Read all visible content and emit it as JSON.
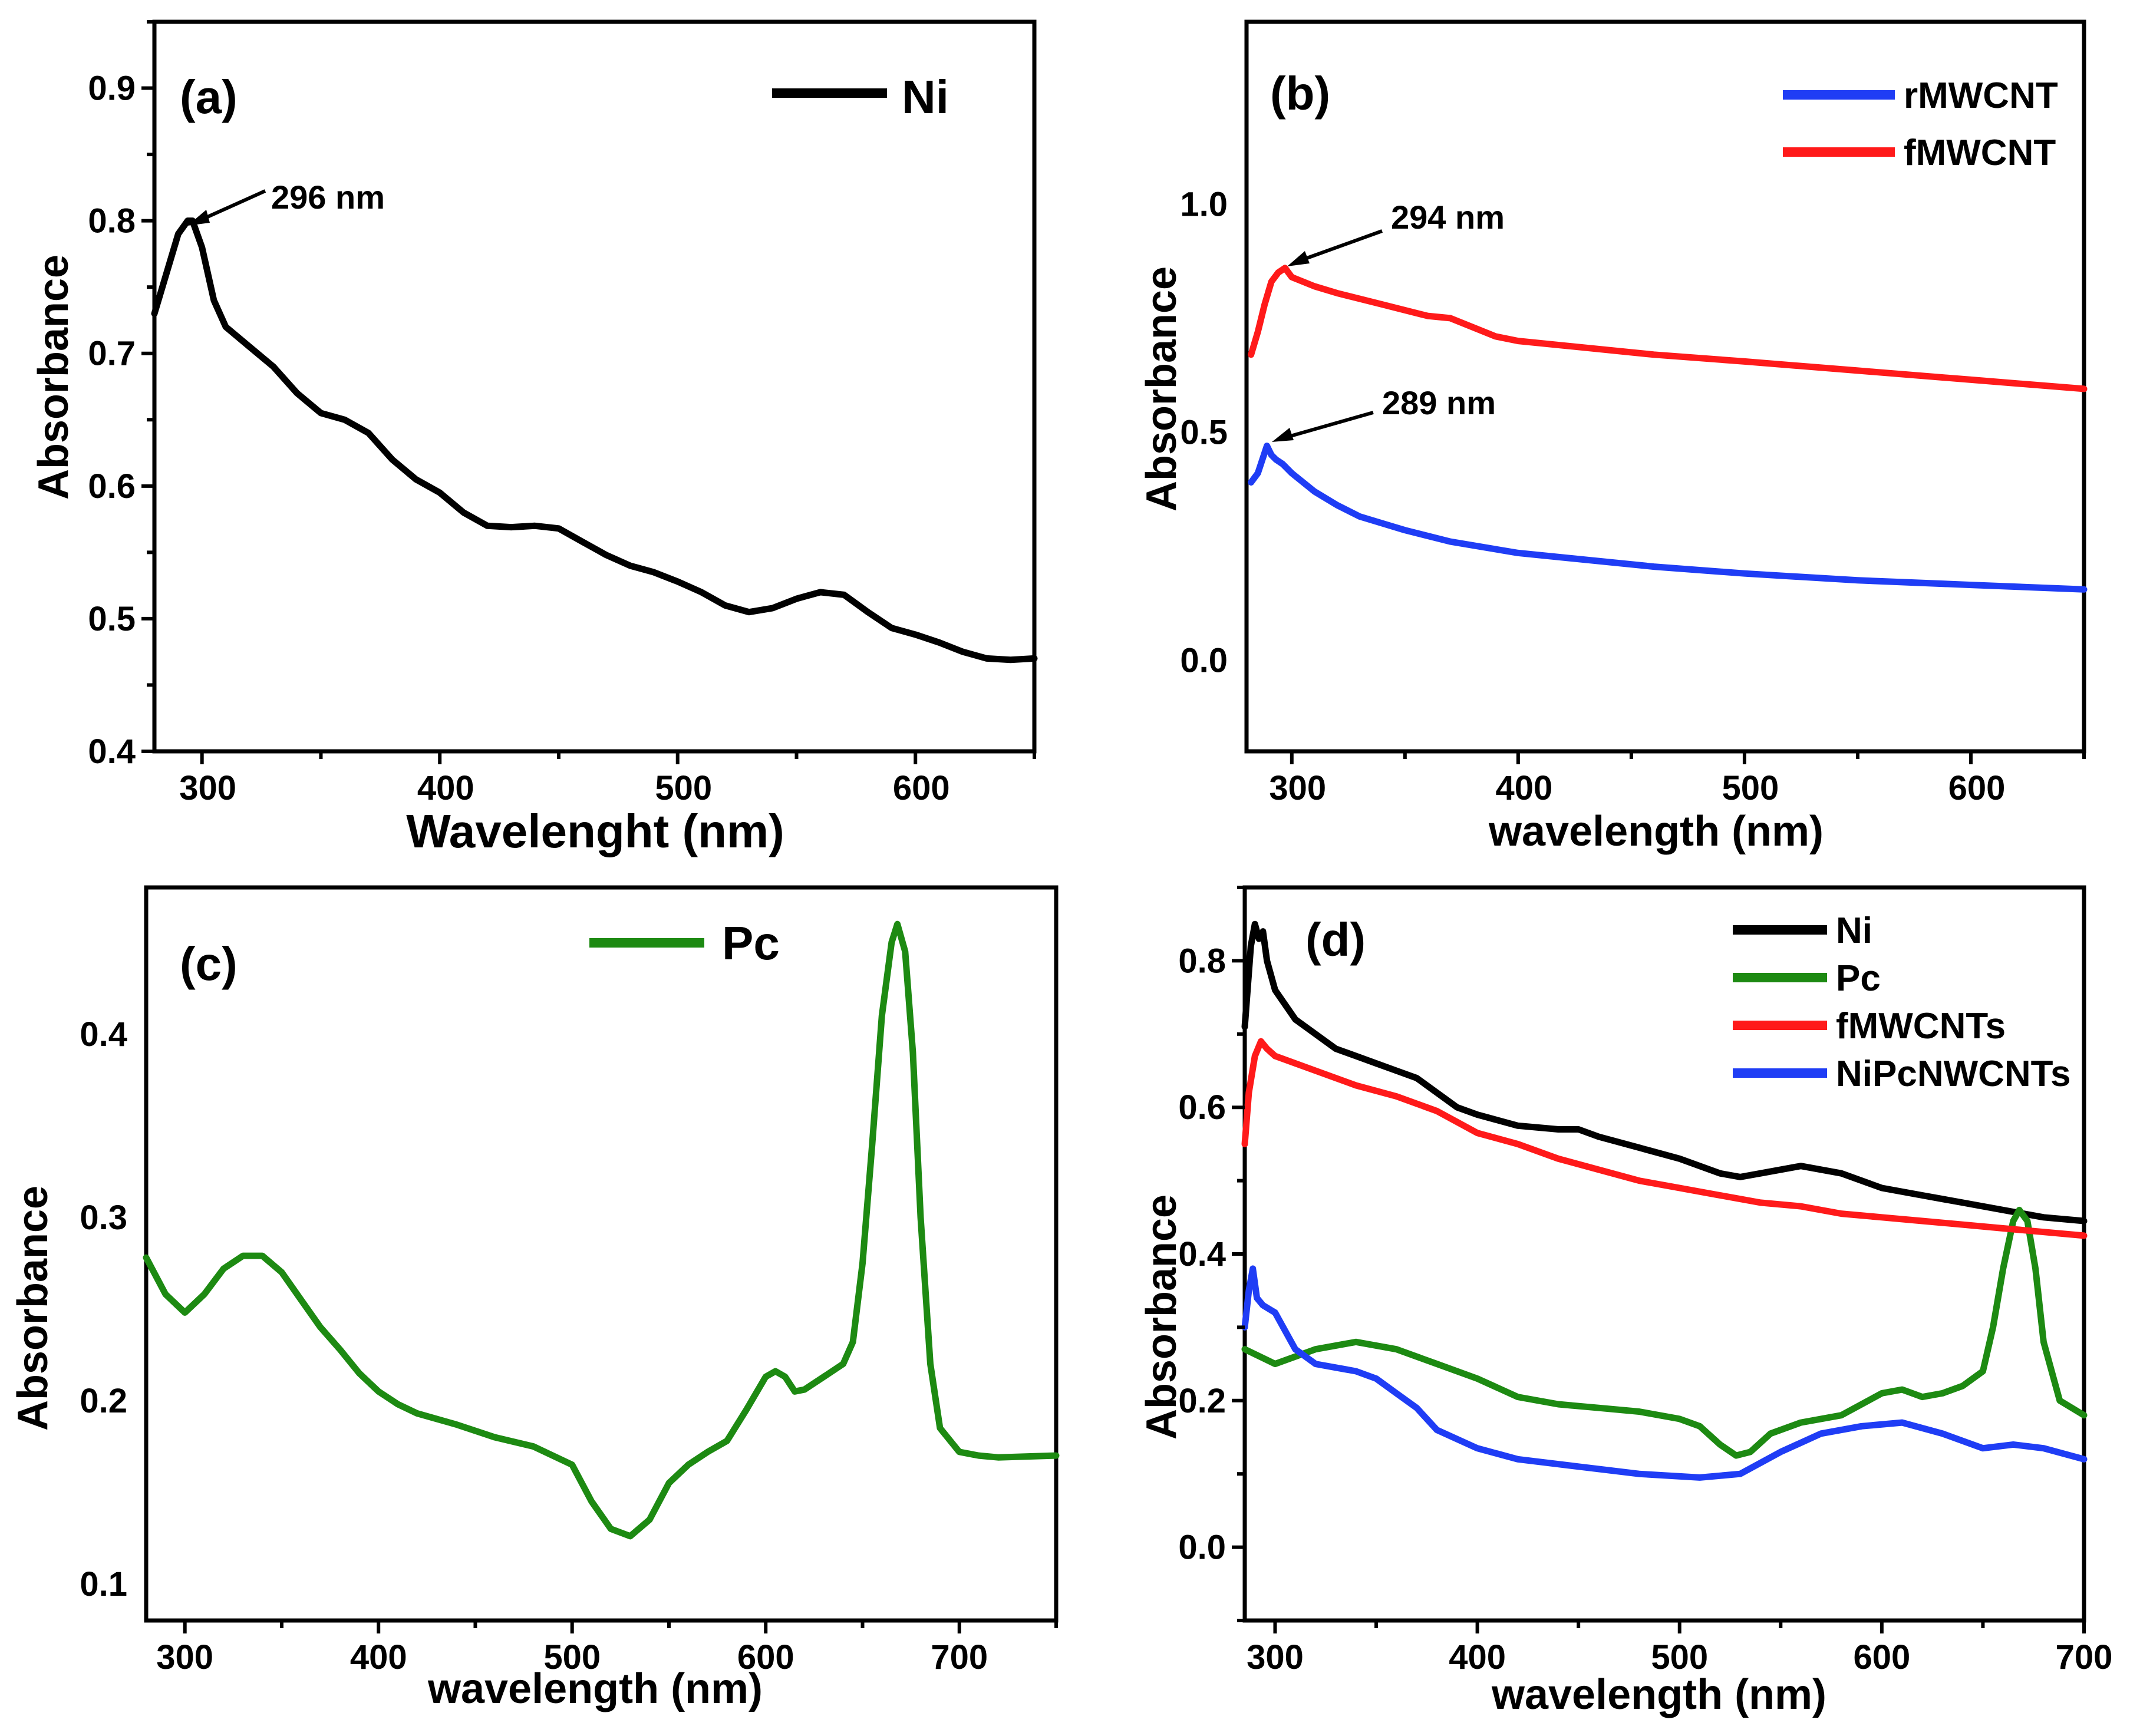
{
  "chart_data": [
    {
      "panel": "(a)",
      "type": "line",
      "xlabel": "Wavelenght (nm)",
      "ylabel": "Absorbance",
      "xlim": [
        280,
        650
      ],
      "ylim": [
        0.4,
        0.95
      ],
      "xticks": [
        300,
        400,
        500,
        600
      ],
      "yticks": [
        0.4,
        0.5,
        0.6,
        0.7,
        0.8,
        0.9
      ],
      "ytick_labels": [
        "0.4",
        "0.5",
        "0.6",
        "0.7",
        "0.8",
        "0.9"
      ],
      "legend_position": "top-right",
      "series": [
        {
          "name": "Ni",
          "color": "#000000",
          "x": [
            280,
            285,
            290,
            294,
            296,
            300,
            305,
            310,
            320,
            330,
            340,
            350,
            360,
            370,
            380,
            390,
            400,
            410,
            420,
            430,
            440,
            450,
            460,
            470,
            480,
            490,
            500,
            510,
            520,
            530,
            540,
            550,
            560,
            570,
            580,
            590,
            600,
            610,
            620,
            630,
            640,
            650
          ],
          "values": [
            0.73,
            0.76,
            0.79,
            0.8,
            0.8,
            0.78,
            0.74,
            0.72,
            0.705,
            0.69,
            0.67,
            0.655,
            0.65,
            0.64,
            0.62,
            0.605,
            0.595,
            0.58,
            0.57,
            0.569,
            0.57,
            0.568,
            0.558,
            0.548,
            0.54,
            0.535,
            0.528,
            0.52,
            0.51,
            0.505,
            0.508,
            0.515,
            0.52,
            0.518,
            0.505,
            0.493,
            0.488,
            0.482,
            0.475,
            0.47,
            0.469,
            0.47
          ]
        }
      ],
      "annotations": [
        {
          "text": "296 nm",
          "x": 296,
          "y": 0.8
        }
      ]
    },
    {
      "panel": "(b)",
      "type": "line",
      "xlabel": "wavelength (nm)",
      "ylabel": "Absorbance",
      "xlim": [
        280,
        650
      ],
      "ylim": [
        -0.2,
        1.4
      ],
      "xticks": [
        300,
        400,
        500,
        600
      ],
      "yticks": [
        0.0,
        0.5,
        1.0
      ],
      "ytick_labels": [
        "0.0",
        "0.5",
        "1.0"
      ],
      "legend_position": "top-right",
      "series": [
        {
          "name": "rMWCNT",
          "color": "#1f3df5",
          "x": [
            282,
            285,
            287,
            289,
            291,
            293,
            296,
            300,
            310,
            320,
            330,
            340,
            350,
            370,
            400,
            430,
            460,
            500,
            550,
            600,
            650
          ],
          "values": [
            0.39,
            0.41,
            0.44,
            0.47,
            0.45,
            0.44,
            0.43,
            0.41,
            0.37,
            0.34,
            0.315,
            0.3,
            0.285,
            0.26,
            0.235,
            0.22,
            0.205,
            0.19,
            0.175,
            0.165,
            0.155
          ]
        },
        {
          "name": "fMWCNT",
          "color": "#ff1a1a",
          "x": [
            282,
            285,
            288,
            291,
            294,
            297,
            300,
            310,
            320,
            340,
            360,
            370,
            380,
            390,
            400,
            430,
            460,
            500,
            550,
            600,
            650
          ],
          "values": [
            0.67,
            0.72,
            0.78,
            0.83,
            0.85,
            0.86,
            0.84,
            0.82,
            0.805,
            0.78,
            0.755,
            0.75,
            0.73,
            0.71,
            0.7,
            0.685,
            0.67,
            0.655,
            0.635,
            0.615,
            0.595
          ]
        }
      ],
      "annotations": [
        {
          "text": "294 nm",
          "x": 294,
          "y": 0.86
        },
        {
          "text": "289 nm",
          "x": 289,
          "y": 0.47
        }
      ]
    },
    {
      "panel": "(c)",
      "type": "line",
      "xlabel": "wavelength (nm)",
      "ylabel": "Absorbance",
      "xlim": [
        280,
        750
      ],
      "ylim": [
        0.08,
        0.48
      ],
      "xticks": [
        300,
        400,
        500,
        600,
        700
      ],
      "yticks": [
        0.1,
        0.2,
        0.3,
        0.4
      ],
      "ytick_labels": [
        "0.1",
        "0.2",
        "0.3",
        "0.4"
      ],
      "legend_position": "top-center",
      "series": [
        {
          "name": "Pc",
          "color": "#1d8a12",
          "x": [
            280,
            290,
            300,
            310,
            320,
            330,
            340,
            350,
            360,
            370,
            380,
            390,
            400,
            410,
            420,
            440,
            460,
            480,
            500,
            510,
            520,
            530,
            540,
            550,
            560,
            570,
            580,
            590,
            600,
            605,
            610,
            615,
            620,
            630,
            640,
            645,
            650,
            655,
            660,
            665,
            668,
            672,
            676,
            680,
            685,
            690,
            700,
            710,
            720,
            750
          ],
          "values": [
            0.278,
            0.258,
            0.248,
            0.258,
            0.272,
            0.279,
            0.279,
            0.27,
            0.255,
            0.24,
            0.228,
            0.215,
            0.205,
            0.198,
            0.193,
            0.187,
            0.18,
            0.175,
            0.165,
            0.145,
            0.13,
            0.126,
            0.135,
            0.155,
            0.165,
            0.172,
            0.178,
            0.195,
            0.213,
            0.216,
            0.213,
            0.205,
            0.206,
            0.213,
            0.22,
            0.232,
            0.275,
            0.34,
            0.41,
            0.45,
            0.46,
            0.445,
            0.39,
            0.3,
            0.22,
            0.185,
            0.172,
            0.17,
            0.169,
            0.17
          ]
        }
      ]
    },
    {
      "panel": "(d)",
      "type": "line",
      "xlabel": "wavelength (nm)",
      "ylabel": "Absorbance",
      "xlim": [
        285,
        700
      ],
      "ylim": [
        -0.1,
        0.9
      ],
      "xticks": [
        300,
        400,
        500,
        600,
        700
      ],
      "yticks": [
        0.0,
        0.2,
        0.4,
        0.6,
        0.8
      ],
      "ytick_labels": [
        "0.0",
        "0.2",
        "0.4",
        "0.6",
        "0.8"
      ],
      "legend_position": "top-right",
      "series": [
        {
          "name": "Ni",
          "color": "#000000",
          "x": [
            285,
            288,
            290,
            292,
            294,
            296,
            300,
            310,
            320,
            330,
            340,
            350,
            360,
            370,
            380,
            390,
            400,
            420,
            440,
            450,
            460,
            480,
            500,
            520,
            530,
            540,
            560,
            580,
            600,
            620,
            640,
            660,
            680,
            700
          ],
          "values": [
            0.71,
            0.82,
            0.85,
            0.83,
            0.84,
            0.8,
            0.76,
            0.72,
            0.7,
            0.68,
            0.67,
            0.66,
            0.65,
            0.64,
            0.62,
            0.6,
            0.59,
            0.575,
            0.57,
            0.57,
            0.56,
            0.545,
            0.53,
            0.51,
            0.505,
            0.51,
            0.52,
            0.51,
            0.49,
            0.48,
            0.47,
            0.46,
            0.45,
            0.445
          ]
        },
        {
          "name": "Pc",
          "color": "#1d8a12",
          "x": [
            285,
            300,
            320,
            340,
            360,
            380,
            400,
            420,
            440,
            460,
            480,
            500,
            510,
            520,
            528,
            535,
            545,
            560,
            580,
            600,
            610,
            620,
            630,
            640,
            650,
            655,
            660,
            665,
            668,
            672,
            676,
            680,
            688,
            700
          ],
          "values": [
            0.27,
            0.25,
            0.27,
            0.28,
            0.27,
            0.25,
            0.23,
            0.205,
            0.195,
            0.19,
            0.185,
            0.175,
            0.165,
            0.14,
            0.125,
            0.13,
            0.155,
            0.17,
            0.18,
            0.21,
            0.215,
            0.205,
            0.21,
            0.22,
            0.24,
            0.3,
            0.38,
            0.445,
            0.46,
            0.445,
            0.38,
            0.28,
            0.2,
            0.18
          ]
        },
        {
          "name": "fMWCNTs",
          "color": "#ff1a1a",
          "x": [
            285,
            287,
            290,
            293,
            296,
            300,
            320,
            340,
            360,
            380,
            400,
            420,
            440,
            460,
            480,
            500,
            520,
            540,
            560,
            580,
            600,
            620,
            640,
            660,
            680,
            700
          ],
          "values": [
            0.55,
            0.62,
            0.67,
            0.69,
            0.68,
            0.67,
            0.65,
            0.63,
            0.615,
            0.595,
            0.565,
            0.55,
            0.53,
            0.515,
            0.5,
            0.49,
            0.48,
            0.47,
            0.465,
            0.455,
            0.45,
            0.445,
            0.44,
            0.435,
            0.43,
            0.425
          ]
        },
        {
          "name": "NiPcNWCNTs",
          "color": "#1f3df5",
          "x": [
            285,
            287,
            289,
            291,
            294,
            300,
            310,
            320,
            330,
            340,
            350,
            360,
            370,
            380,
            400,
            420,
            450,
            480,
            510,
            530,
            550,
            570,
            590,
            610,
            630,
            650,
            665,
            680,
            700
          ],
          "values": [
            0.3,
            0.35,
            0.38,
            0.34,
            0.33,
            0.32,
            0.27,
            0.25,
            0.245,
            0.24,
            0.23,
            0.21,
            0.19,
            0.16,
            0.135,
            0.12,
            0.11,
            0.1,
            0.095,
            0.1,
            0.13,
            0.155,
            0.165,
            0.17,
            0.155,
            0.135,
            0.14,
            0.135,
            0.12
          ]
        }
      ]
    }
  ]
}
